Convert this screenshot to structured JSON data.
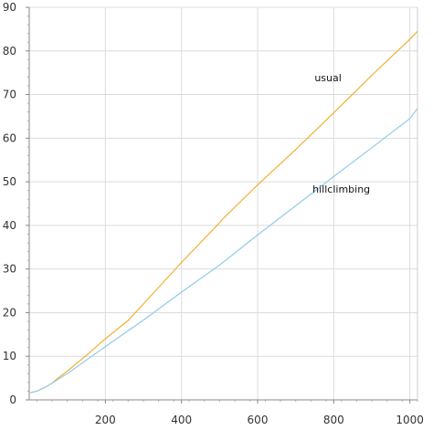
{
  "chart_data": {
    "type": "line",
    "title": "",
    "xlabel": "",
    "ylabel": "",
    "xlim": [
      0,
      1020
    ],
    "ylim": [
      0,
      90
    ],
    "grid": true,
    "x_ticks": [
      200,
      400,
      600,
      800,
      1000
    ],
    "y_ticks": [
      0,
      10,
      20,
      30,
      40,
      50,
      60,
      70,
      80,
      90
    ],
    "series": [
      {
        "name": "usual",
        "color": "#f0b030",
        "x": [
          0,
          20,
          40,
          60,
          70,
          100,
          150,
          200,
          260,
          300,
          400,
          500,
          510,
          600,
          700,
          800,
          900,
          1000,
          1020
        ],
        "y": [
          1.6,
          2.0,
          2.8,
          3.8,
          4.6,
          6.6,
          10.2,
          14.0,
          18.2,
          22.0,
          31.5,
          40.6,
          41.6,
          49.3,
          57.4,
          65.8,
          74.4,
          82.7,
          84.5
        ]
      },
      {
        "name": "hillclimbing",
        "color": "#90ccec",
        "x": [
          0,
          20,
          40,
          60,
          70,
          100,
          200,
          300,
          400,
          500,
          600,
          700,
          800,
          900,
          1000,
          1020
        ],
        "y": [
          1.6,
          2.0,
          2.8,
          3.8,
          4.4,
          6.0,
          12.2,
          18.3,
          24.7,
          30.9,
          37.8,
          44.5,
          51.2,
          57.8,
          64.5,
          66.8
        ]
      }
    ],
    "annotations": [
      {
        "text": "usual",
        "x": 785,
        "y": 73
      },
      {
        "text": "hillclimbing",
        "x": 820,
        "y": 47.5
      }
    ]
  }
}
